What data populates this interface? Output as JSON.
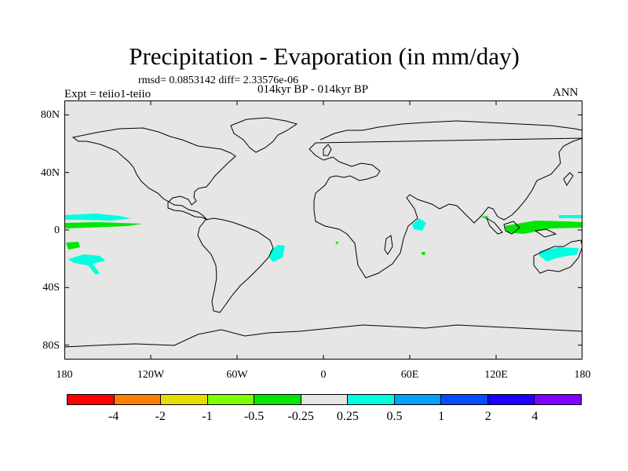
{
  "title": "Precipitation - Evaporation (in mm/day)",
  "stats": "rmsd= 0.0853142 diff= 2.33576e-06",
  "experiment": "Expt = teiio1-teiio",
  "period": "014kyr BP - 014kyr BP",
  "season": "ANN",
  "lat_ticks": [
    {
      "label": "80N",
      "value": 80
    },
    {
      "label": "40N",
      "value": 40
    },
    {
      "label": "0",
      "value": 0
    },
    {
      "label": "40S",
      "value": -40
    },
    {
      "label": "80S",
      "value": -80
    }
  ],
  "lon_ticks": [
    {
      "label": "180",
      "value": -180
    },
    {
      "label": "120W",
      "value": -120
    },
    {
      "label": "60W",
      "value": -60
    },
    {
      "label": "0",
      "value": 0
    },
    {
      "label": "60E",
      "value": 60
    },
    {
      "label": "120E",
      "value": 120
    },
    {
      "label": "180",
      "value": 180
    }
  ],
  "colorbar": {
    "colors": [
      "#ff0000",
      "#ff8000",
      "#e6dc00",
      "#80ff00",
      "#00e600",
      "#e6e6e6",
      "#00ffe0",
      "#00a0ff",
      "#0050ff",
      "#1e00ff",
      "#8000ff"
    ],
    "labels": [
      "-4",
      "-2",
      "-1",
      "-0.5",
      "-0.25",
      "0.25",
      "0.5",
      "1",
      "2",
      "4"
    ]
  },
  "map_background": "#e6e6e6"
}
